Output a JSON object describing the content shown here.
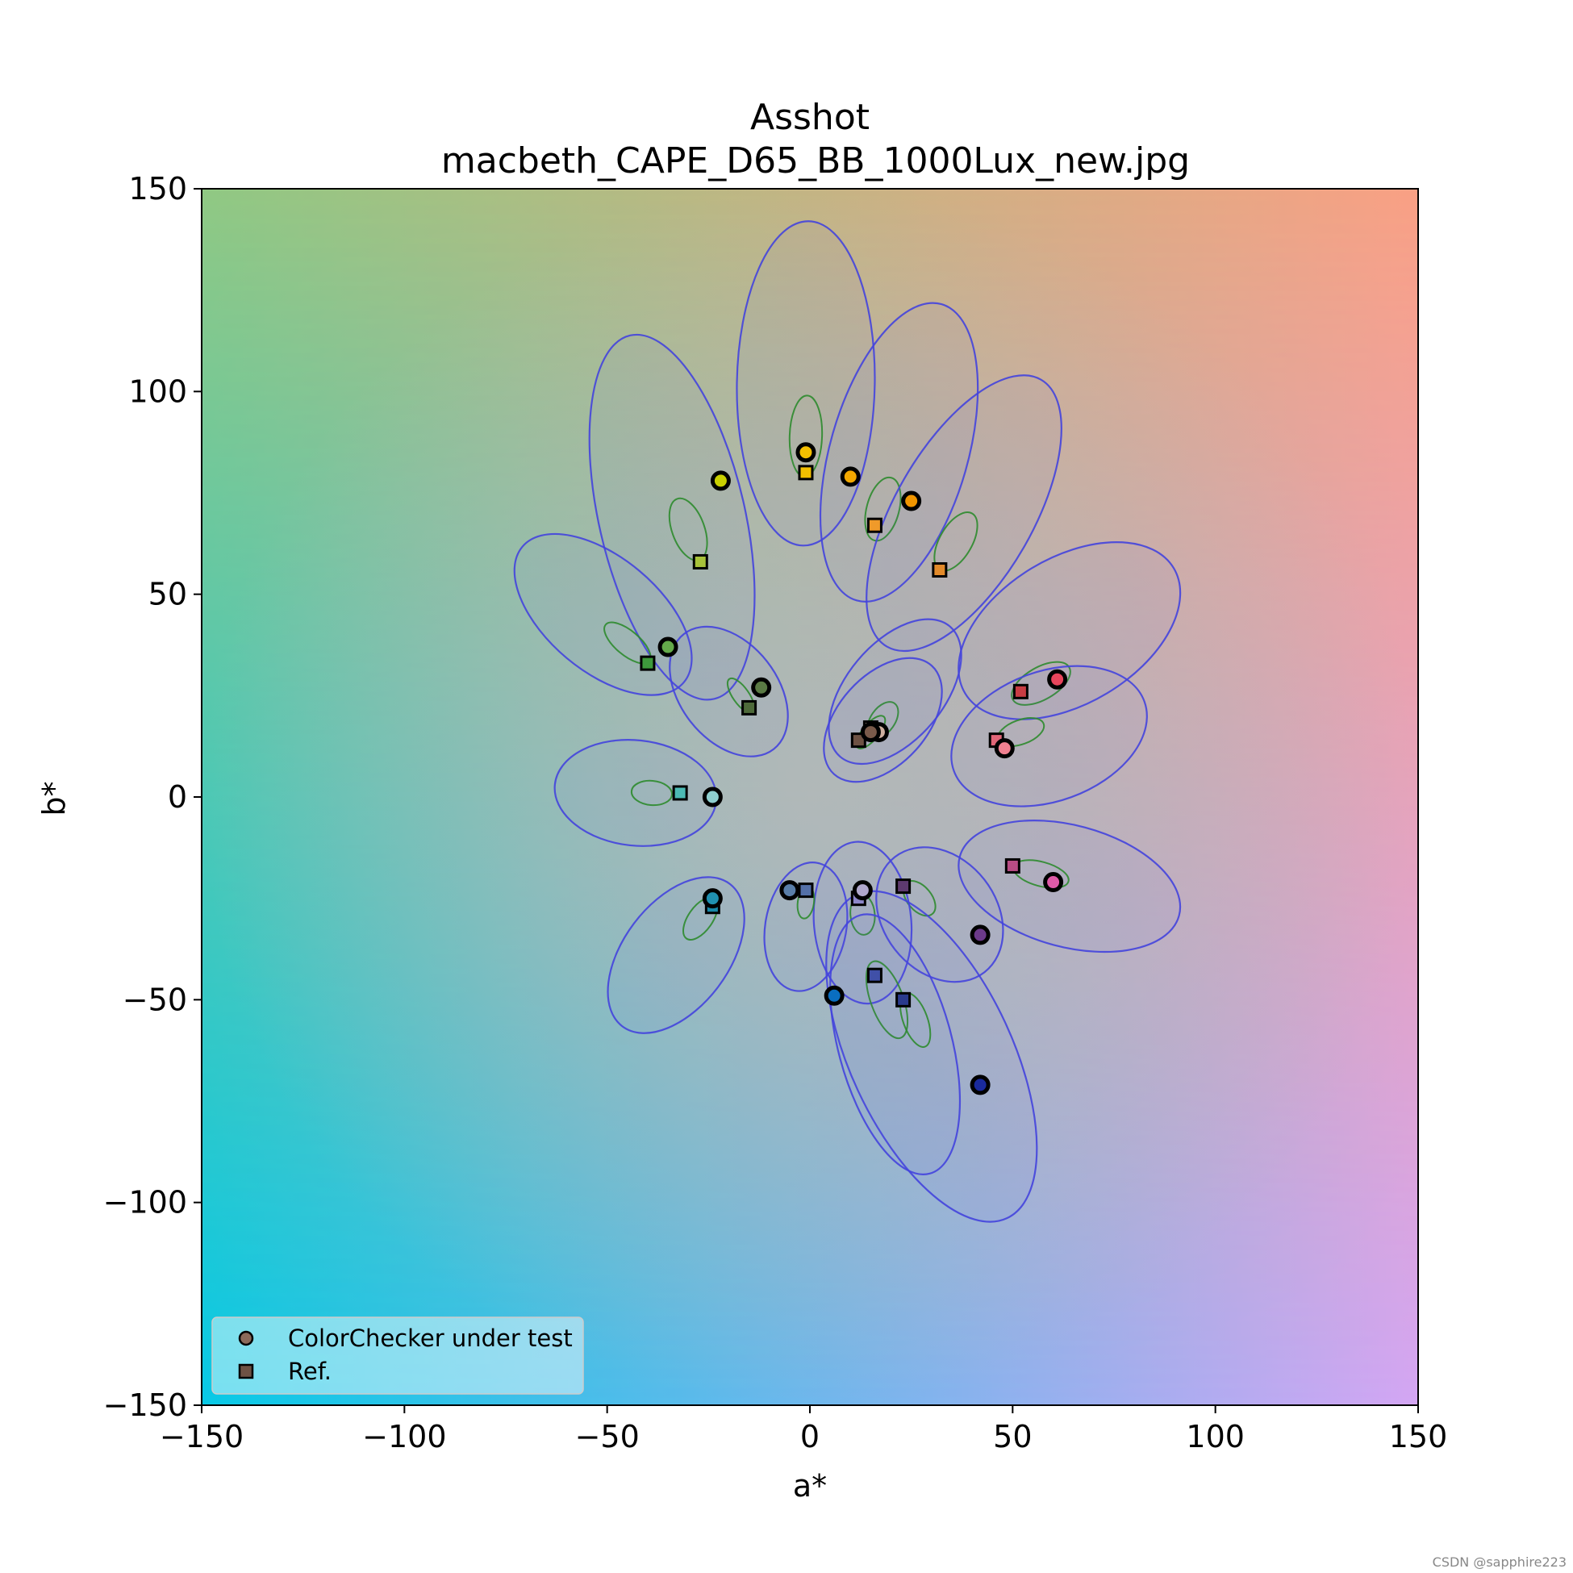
{
  "chart_data": {
    "type": "scatter",
    "title": "Asshot",
    "subtitle": "macbeth_CAPE_D65_BB_1000Lux_new.jpg",
    "xlabel": "a*",
    "ylabel": "b*",
    "xlim": [
      -150,
      150
    ],
    "ylim": [
      -150,
      150
    ],
    "xticks": [
      -150,
      -100,
      -50,
      0,
      50,
      100,
      150
    ],
    "yticks": [
      -150,
      -100,
      -50,
      0,
      50,
      100,
      150
    ],
    "tick_labels": [
      "−150",
      "−100",
      "−50",
      "0",
      "50",
      "100",
      "150"
    ],
    "legend": {
      "placement": "lower-left",
      "entries": [
        "ColorChecker under test",
        "Ref."
      ]
    },
    "background": {
      "corner_top_left": "#90c883",
      "corner_top_right": "#f9a084",
      "corner_bottom_left": "#08c9e6",
      "corner_bottom_right": "#d4a6f3",
      "center": "#b9b9b9"
    },
    "patches": [
      {
        "test": [
          -22,
          78
        ],
        "ref": [
          -27,
          58
        ],
        "color_test": "#c9d000",
        "color_ref": "#a8c23a",
        "outer": {
          "cx": -34,
          "cy": 69,
          "rx": 18,
          "ry": 46,
          "rot": -13
        },
        "inner": {
          "cx": -30,
          "cy": 66,
          "rx": 4,
          "ry": 8,
          "rot": -20
        }
      },
      {
        "test": [
          -1,
          85
        ],
        "ref": [
          -1,
          80
        ],
        "color_test": "#f5c000",
        "color_ref": "#f3c000",
        "outer": {
          "cx": -1,
          "cy": 102,
          "rx": 17,
          "ry": 40,
          "rot": 1
        },
        "inner": {
          "cx": -1,
          "cy": 89,
          "rx": 4,
          "ry": 10,
          "rot": 2
        }
      },
      {
        "test": [
          10,
          79
        ],
        "ref": [
          16,
          67
        ],
        "color_test": "#f3a800",
        "color_ref": "#f09a2a",
        "outer": {
          "cx": 22,
          "cy": 85,
          "rx": 17,
          "ry": 38,
          "rot": 16
        },
        "inner": {
          "cx": 18,
          "cy": 71,
          "rx": 4,
          "ry": 8,
          "rot": 15
        }
      },
      {
        "test": [
          25,
          73
        ],
        "ref": [
          32,
          56
        ],
        "color_test": "#f09500",
        "color_ref": "#e28a2a",
        "outer": {
          "cx": 38,
          "cy": 70,
          "rx": 17,
          "ry": 38,
          "rot": 30
        },
        "inner": {
          "cx": 36,
          "cy": 63,
          "rx": 4,
          "ry": 8,
          "rot": 30
        }
      },
      {
        "test": [
          -35,
          37
        ],
        "ref": [
          -40,
          33
        ],
        "color_test": "#64aa4a",
        "color_ref": "#3e9a3c",
        "outer": {
          "cx": -51,
          "cy": 45,
          "rx": 14,
          "ry": 26,
          "rot": -50
        },
        "inner": {
          "cx": -45,
          "cy": 38,
          "rx": 3,
          "ry": 7,
          "rot": -50
        }
      },
      {
        "test": [
          -12,
          27
        ],
        "ref": [
          -15,
          22
        ],
        "color_test": "#5a7a44",
        "color_ref": "#4e6a3a",
        "outer": {
          "cx": -20,
          "cy": 26,
          "rx": 12,
          "ry": 18,
          "rot": -38
        },
        "inner": {
          "cx": -17,
          "cy": 25,
          "rx": 2,
          "ry": 5,
          "rot": -35
        }
      },
      {
        "test": [
          -24,
          0
        ],
        "ref": [
          -32,
          1
        ],
        "color_test": "#8fcfcf",
        "color_ref": "#4cbab4",
        "outer": {
          "cx": -43,
          "cy": 1,
          "rx": 20,
          "ry": 13,
          "rot": 6
        },
        "inner": {
          "cx": -39,
          "cy": 1,
          "rx": 5,
          "ry": 3,
          "rot": 5
        }
      },
      {
        "test": [
          17,
          16
        ],
        "ref": [
          15,
          17
        ],
        "color_test": "#ceb0a0",
        "color_ref": "#d2b6a6",
        "outer": {
          "cx": 21,
          "cy": 26,
          "rx": 12,
          "ry": 21,
          "rot": 40
        },
        "inner": {
          "cx": 18,
          "cy": 19,
          "rx": 3,
          "ry": 5,
          "rot": 35
        }
      },
      {
        "test": [
          15,
          16
        ],
        "ref": [
          12,
          14
        ],
        "color_test": "#7a5a4a",
        "color_ref": "#6e5244",
        "outer": {
          "cx": 18,
          "cy": 19,
          "rx": 11,
          "ry": 18,
          "rot": 42
        },
        "inner": {
          "cx": 15,
          "cy": 16,
          "rx": 2,
          "ry": 5,
          "rot": 40
        }
      },
      {
        "test": [
          61,
          29
        ],
        "ref": [
          52,
          26
        ],
        "color_test": "#e8455c",
        "color_ref": "#c83c44",
        "outer": {
          "cx": 64,
          "cy": 41,
          "rx": 18,
          "ry": 30,
          "rot": 59
        },
        "inner": {
          "cx": 57,
          "cy": 28,
          "rx": 4,
          "ry": 8,
          "rot": 60
        }
      },
      {
        "test": [
          48,
          12
        ],
        "ref": [
          46,
          14
        ],
        "color_test": "#f08090",
        "color_ref": "#e26678",
        "outer": {
          "cx": 59,
          "cy": 15,
          "rx": 25,
          "ry": 16,
          "rot": -20
        },
        "inner": {
          "cx": 52,
          "cy": 16,
          "rx": 6,
          "ry": 3,
          "rot": -20
        }
      },
      {
        "test": [
          60,
          -21
        ],
        "ref": [
          50,
          -17
        ],
        "color_test": "#e05aa8",
        "color_ref": "#b84c84",
        "outer": {
          "cx": 64,
          "cy": -22,
          "rx": 28,
          "ry": 15,
          "rot": 15
        },
        "inner": {
          "cx": 57,
          "cy": -19,
          "rx": 7,
          "ry": 3,
          "rot": 15
        }
      },
      {
        "test": [
          42,
          -34
        ],
        "ref": [
          23,
          -22
        ],
        "color_test": "#6c3a8a",
        "color_ref": "#5e3a6e",
        "outer": {
          "cx": 32,
          "cy": -29,
          "rx": 14,
          "ry": 18,
          "rot": -38
        },
        "inner": {
          "cx": 27,
          "cy": -25,
          "rx": 3,
          "ry": 5,
          "rot": -40
        }
      },
      {
        "test": [
          13,
          -23
        ],
        "ref": [
          12,
          -25
        ],
        "color_test": "#b0a8cc",
        "color_ref": "#8c86c8",
        "outer": {
          "cx": 13,
          "cy": -31,
          "rx": 12,
          "ry": 20,
          "rot": -5
        },
        "inner": {
          "cx": 13,
          "cy": -29,
          "rx": 3,
          "ry": 5,
          "rot": -5
        }
      },
      {
        "test": [
          -5,
          -23
        ],
        "ref": [
          -1,
          -23
        ],
        "color_test": "#5a7ea8",
        "color_ref": "#5470a8",
        "outer": {
          "cx": -1,
          "cy": -32,
          "rx": 10,
          "ry": 16,
          "rot": 10
        },
        "inner": {
          "cx": -1,
          "cy": -26,
          "rx": 2,
          "ry": 4,
          "rot": 8
        }
      },
      {
        "test": [
          -24,
          -25
        ],
        "ref": [
          -24,
          -27
        ],
        "color_test": "#2090b0",
        "color_ref": "#1888a8",
        "outer": {
          "cx": -33,
          "cy": -39,
          "rx": 13,
          "ry": 22,
          "rot": 37
        },
        "inner": {
          "cx": -27,
          "cy": -30,
          "rx": 3,
          "ry": 6,
          "rot": 35
        }
      },
      {
        "test": [
          6,
          -49
        ],
        "ref": [
          16,
          -44
        ],
        "color_test": "#0a6ec0",
        "color_ref": "#4050a8",
        "outer": {
          "cx": 30,
          "cy": -64,
          "rx": 20,
          "ry": 44,
          "rot": -25
        },
        "inner": {
          "cx": 19,
          "cy": -50,
          "rx": 4,
          "ry": 10,
          "rot": -20
        }
      },
      {
        "test": [
          42,
          -71
        ],
        "ref": [
          23,
          -50
        ],
        "color_test": "#1a2a9c",
        "color_ref": "#2a3a8c",
        "outer": {
          "cx": 21,
          "cy": -61,
          "rx": 14,
          "ry": 33,
          "rot": -15
        },
        "inner": {
          "cx": 26,
          "cy": -55,
          "rx": 3,
          "ry": 7,
          "rot": -20
        }
      }
    ]
  }
}
